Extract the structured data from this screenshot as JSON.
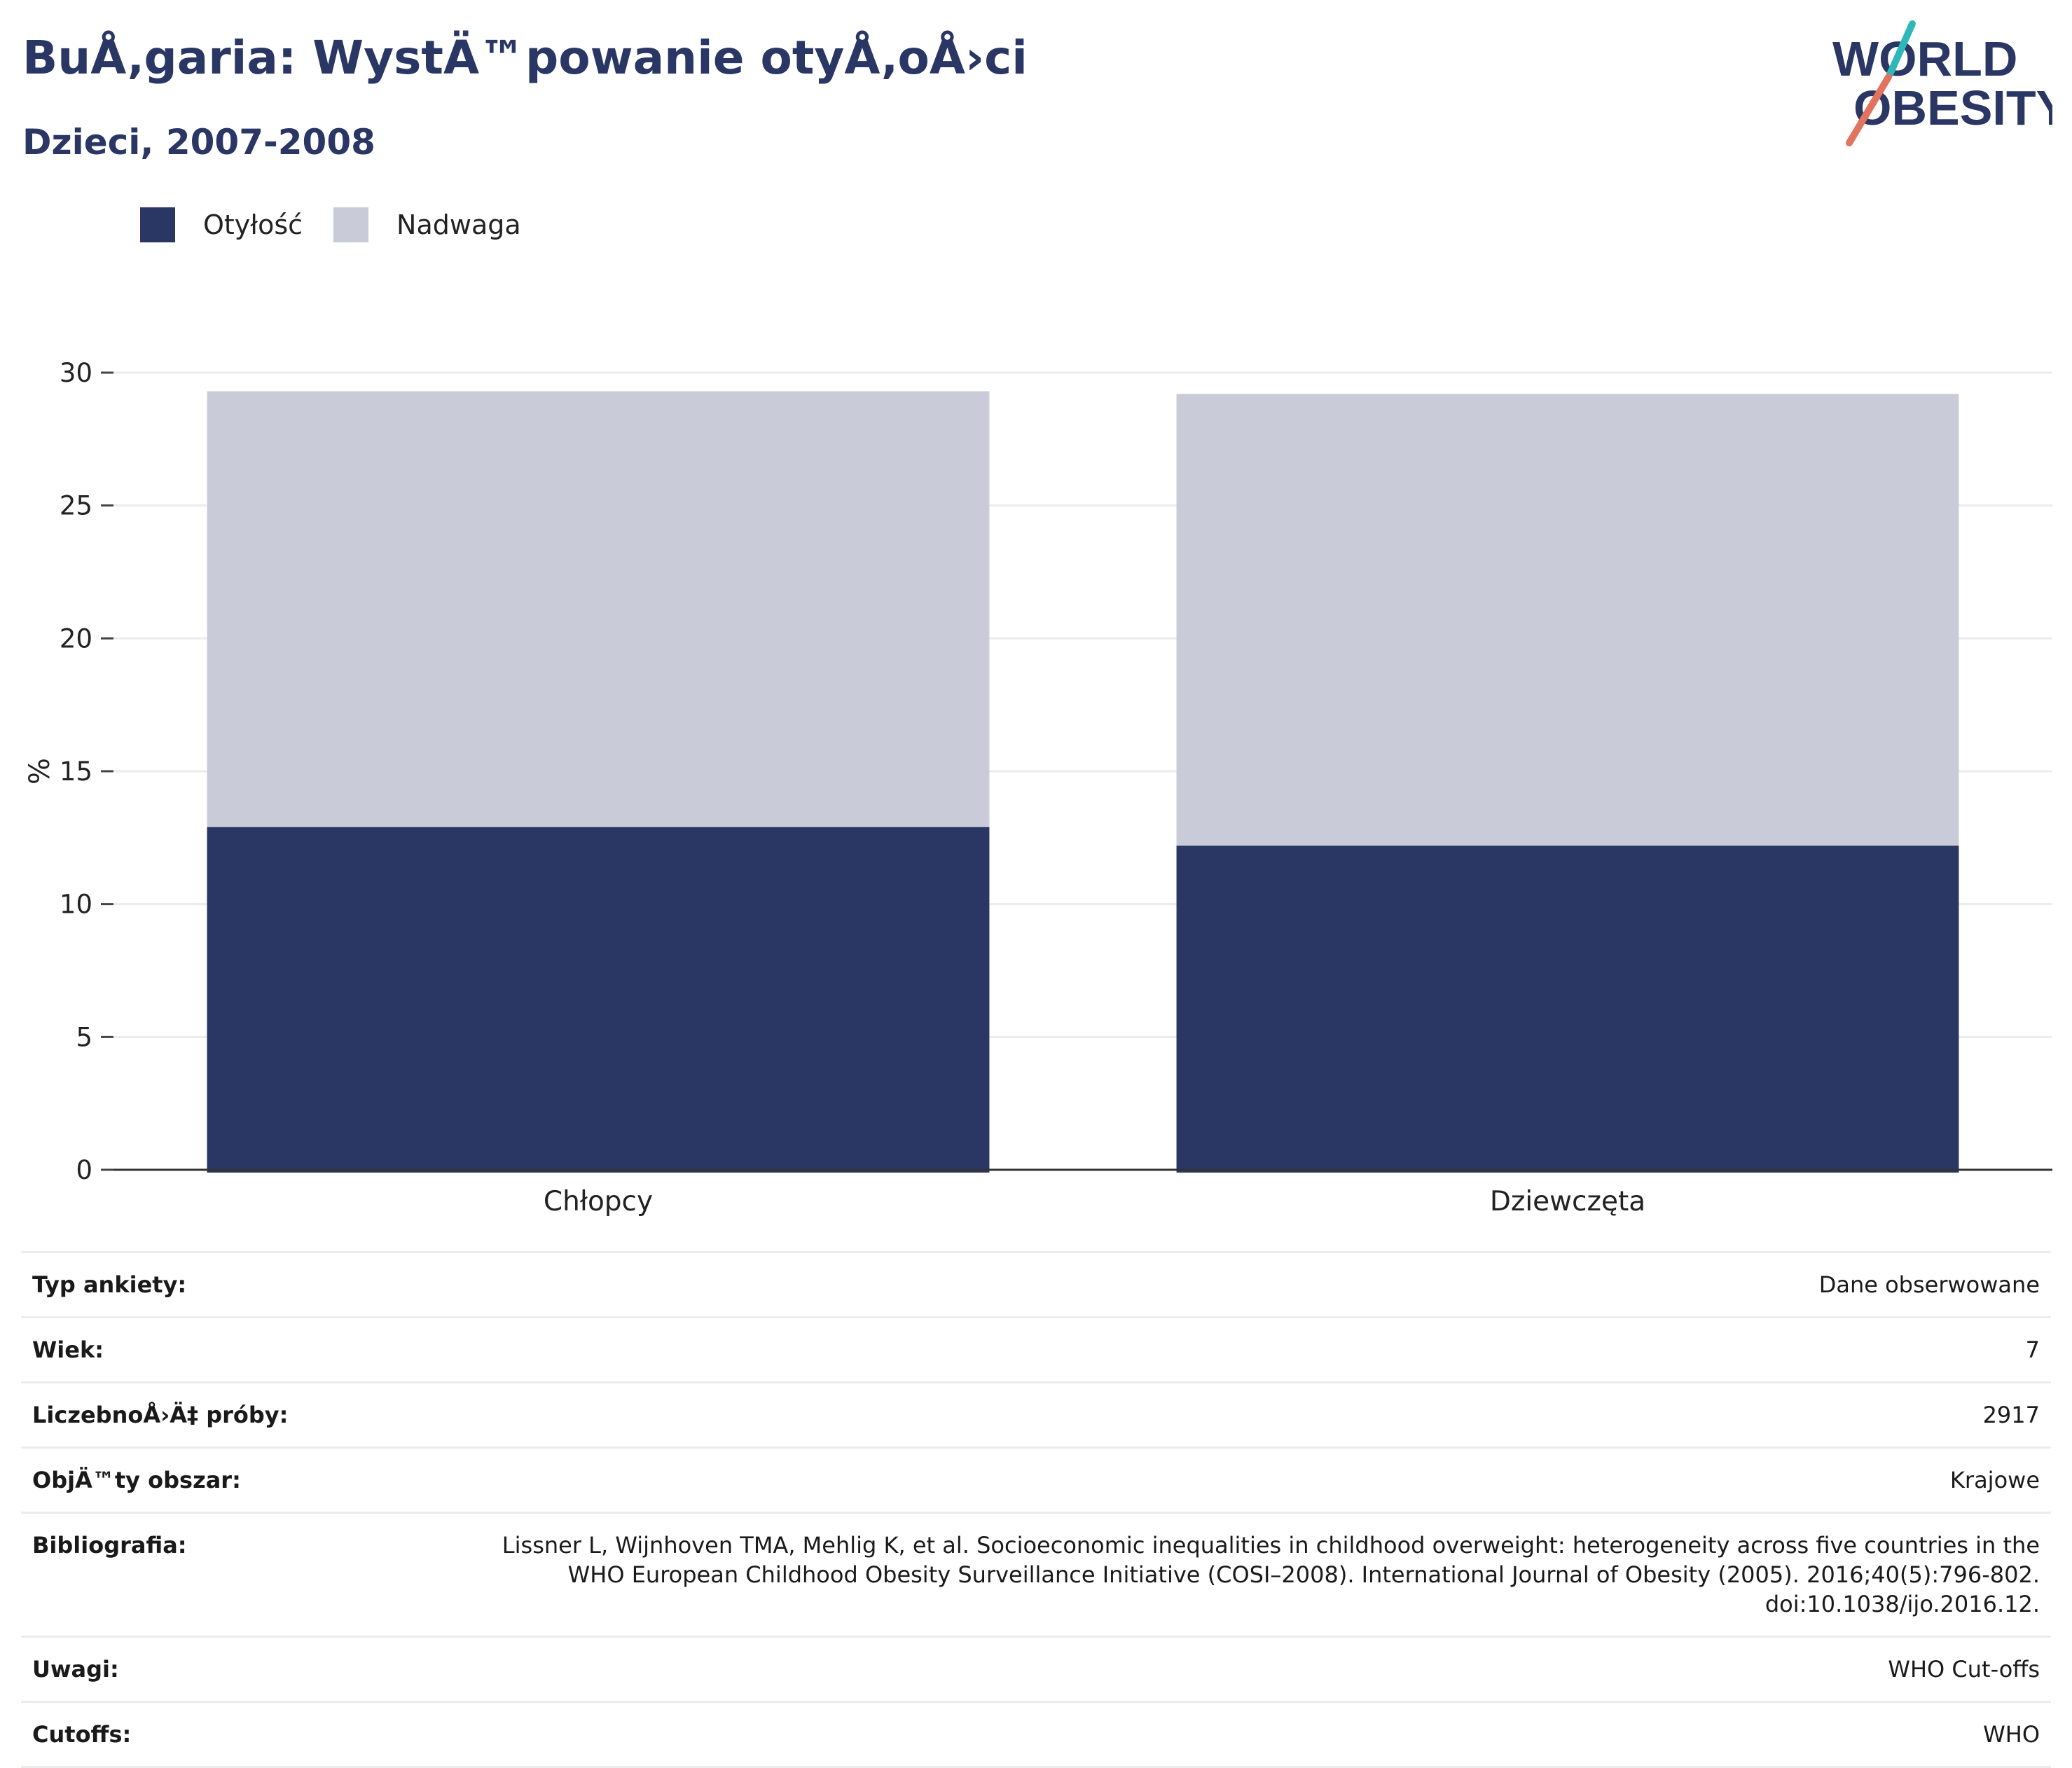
{
  "header": {
    "title": "BuÅ‚garia: WystÄ™powanie otyÅ‚oÅ›ci",
    "subtitle": "Dzieci, 2007-2008"
  },
  "logo": {
    "line1": "WORLD",
    "line2": "OBESITY",
    "icon": "world-obesity-logo",
    "colors": {
      "text": "#2a3663",
      "slash_top": "#2fb8b9",
      "slash_bottom": "#e2735e"
    }
  },
  "legend": [
    {
      "label": "Otyłość",
      "color": "#2a3663"
    },
    {
      "label": "Nadwaga",
      "color": "#c9ccd8"
    }
  ],
  "chart_data": {
    "type": "bar",
    "stacked": true,
    "categories": [
      "Chłopcy",
      "Dziewczęta"
    ],
    "series": [
      {
        "name": "Otyłość",
        "values": [
          12.9,
          12.2
        ],
        "color": "#2a3663"
      },
      {
        "name": "Nadwaga",
        "values": [
          16.4,
          17.0
        ],
        "color": "#c9ccd8"
      }
    ],
    "ylabel": "%",
    "ylim": [
      0,
      30
    ],
    "yticks": [
      0,
      5,
      10,
      15,
      20,
      25,
      30
    ],
    "grid": true,
    "legend_position": "top-left"
  },
  "info": [
    {
      "key": "Typ ankiety:",
      "value": "Dane obserwowane"
    },
    {
      "key": "Wiek:",
      "value": "7"
    },
    {
      "key": "LiczebnoÅ›Ä‡ próby:",
      "value": "2917"
    },
    {
      "key": "ObjÄ™ty obszar:",
      "value": "Krajowe"
    },
    {
      "key": "Bibliografia:",
      "value_lines": [
        "Lissner L, Wijnhoven TMA, Mehlig K, et al. Socioeconomic inequalities in childhood overweight: heterogeneity across five countries in the",
        "WHO European Childhood Obesity Surveillance Initiative (COSI–2008). International Journal of Obesity (2005). 2016;40(5):796-802.",
        "doi:10.1038/ijo.2016.12."
      ]
    },
    {
      "key": "Uwagi:",
      "value": "WHO Cut-offs"
    },
    {
      "key": "Cutoffs:",
      "value": "WHO"
    }
  ]
}
